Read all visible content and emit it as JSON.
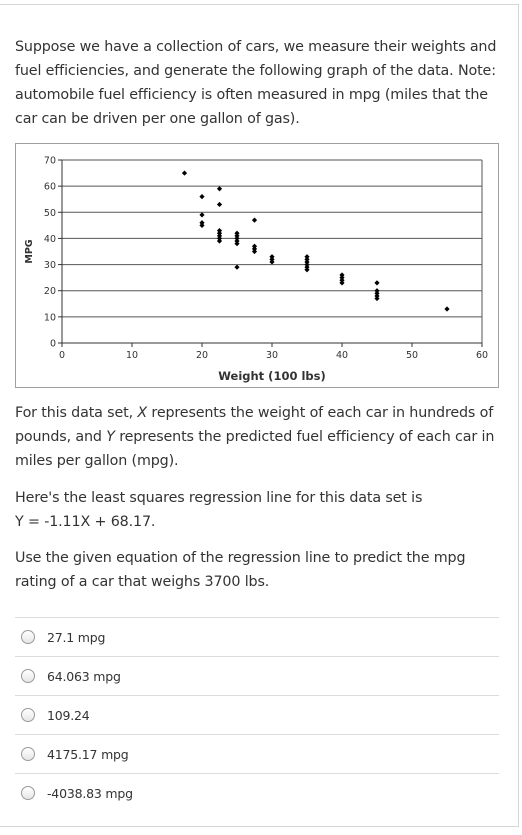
{
  "question": {
    "intro": "Suppose we have a collection of cars, we measure their weights and fuel efficiencies, and generate the following graph of the data. Note: automobile fuel efficiency is often measured in mpg (miles that the car can be driven per one gallon of gas).",
    "definition_part1": "For this data set, ",
    "definition_x": "X",
    "definition_part2": " represents the weight of each car in hundreds of pounds, and ",
    "definition_y": "Y",
    "definition_part3": " represents the predicted fuel efficiency of each car in miles per gallon (mpg).",
    "regression_intro": "Here's the least squares regression line for this data set is",
    "regression_equation": "Y = -1.11X + 68.17.",
    "prompt": "Use the given equation of the regression line to predict the mpg rating of a car that weighs 3700 lbs."
  },
  "choices": [
    {
      "label": "27.1 mpg"
    },
    {
      "label": "64.063 mpg"
    },
    {
      "label": "109.24"
    },
    {
      "label": "4175.17 mpg"
    },
    {
      "label": "-4038.83 mpg"
    }
  ],
  "chart_data": {
    "type": "scatter",
    "xlabel": "Weight (100 lbs)",
    "ylabel": "MPG",
    "xlim": [
      0,
      60
    ],
    "ylim": [
      0,
      70
    ],
    "xticks": [
      0,
      10,
      20,
      30,
      40,
      50,
      60
    ],
    "yticks": [
      0,
      10,
      20,
      30,
      40,
      50,
      60,
      70
    ],
    "grid": "horizontal",
    "colors": {
      "points": "#000000",
      "grid": "#555555",
      "axis": "#333333"
    },
    "points": [
      [
        17.5,
        65
      ],
      [
        20,
        56
      ],
      [
        20,
        49
      ],
      [
        20,
        46
      ],
      [
        20,
        45
      ],
      [
        22.5,
        59
      ],
      [
        22.5,
        53
      ],
      [
        22.5,
        43
      ],
      [
        22.5,
        42
      ],
      [
        22.5,
        41
      ],
      [
        22.5,
        40
      ],
      [
        22.5,
        39
      ],
      [
        25,
        42
      ],
      [
        25,
        41
      ],
      [
        25,
        40
      ],
      [
        25,
        39
      ],
      [
        25,
        38
      ],
      [
        25,
        29
      ],
      [
        27.5,
        47
      ],
      [
        27.5,
        37
      ],
      [
        27.5,
        36
      ],
      [
        27.5,
        35
      ],
      [
        30,
        33
      ],
      [
        30,
        32
      ],
      [
        30,
        31
      ],
      [
        35,
        33
      ],
      [
        35,
        32
      ],
      [
        35,
        31
      ],
      [
        35,
        30
      ],
      [
        35,
        29
      ],
      [
        35,
        28
      ],
      [
        40,
        26
      ],
      [
        40,
        25
      ],
      [
        40,
        24
      ],
      [
        40,
        23
      ],
      [
        45,
        23
      ],
      [
        45,
        20
      ],
      [
        45,
        19
      ],
      [
        45,
        18
      ],
      [
        45,
        17
      ],
      [
        55,
        13
      ]
    ]
  }
}
